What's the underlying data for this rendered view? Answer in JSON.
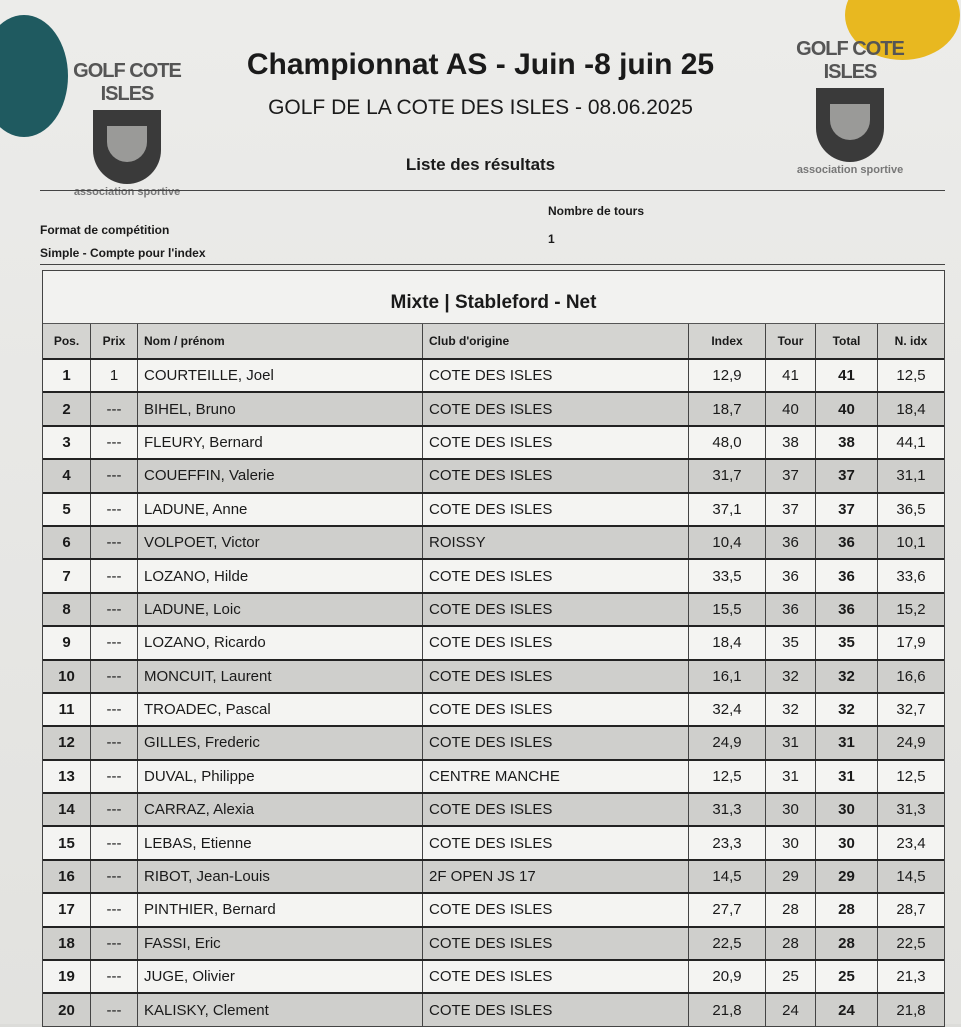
{
  "header": {
    "title": "Championnat AS - Juin  -8 juin 25",
    "subtitle": "GOLF DE LA COTE DES ISLES - 08.06.2025",
    "list_title": "Liste des résultats",
    "logo_text": "GOLF COTE ISLES",
    "logo_subtext": "association sportive"
  },
  "info": {
    "format_label": "Format de compétition",
    "format_value": "Simple - Compte pour l'index",
    "rounds_label": "Nombre de tours",
    "rounds_value": "1"
  },
  "colors": {
    "magnet_left": "#1f5a60",
    "magnet_right": "#e8b820"
  },
  "table": {
    "caption": "Mixte | Stableford - Net",
    "columns": [
      "Pos.",
      "Prix",
      "Nom / prénom",
      "Club d'origine",
      "Index",
      "Tour",
      "Total",
      "N. idx"
    ],
    "rows": [
      [
        "1",
        "1",
        "COURTEILLE, Joel",
        "COTE DES ISLES",
        "12,9",
        "41",
        "41",
        "12,5"
      ],
      [
        "2",
        "---",
        "BIHEL, Bruno",
        "COTE DES ISLES",
        "18,7",
        "40",
        "40",
        "18,4"
      ],
      [
        "3",
        "---",
        "FLEURY, Bernard",
        "COTE DES ISLES",
        "48,0",
        "38",
        "38",
        "44,1"
      ],
      [
        "4",
        "---",
        "COUEFFIN, Valerie",
        "COTE DES ISLES",
        "31,7",
        "37",
        "37",
        "31,1"
      ],
      [
        "5",
        "---",
        "LADUNE, Anne",
        "COTE DES ISLES",
        "37,1",
        "37",
        "37",
        "36,5"
      ],
      [
        "6",
        "---",
        "VOLPOET, Victor",
        "ROISSY",
        "10,4",
        "36",
        "36",
        "10,1"
      ],
      [
        "7",
        "---",
        "LOZANO, Hilde",
        "COTE DES ISLES",
        "33,5",
        "36",
        "36",
        "33,6"
      ],
      [
        "8",
        "---",
        "LADUNE, Loic",
        "COTE DES ISLES",
        "15,5",
        "36",
        "36",
        "15,2"
      ],
      [
        "9",
        "---",
        "LOZANO, Ricardo",
        "COTE DES ISLES",
        "18,4",
        "35",
        "35",
        "17,9"
      ],
      [
        "10",
        "---",
        "MONCUIT, Laurent",
        "COTE DES ISLES",
        "16,1",
        "32",
        "32",
        "16,6"
      ],
      [
        "11",
        "---",
        "TROADEC, Pascal",
        "COTE DES ISLES",
        "32,4",
        "32",
        "32",
        "32,7"
      ],
      [
        "12",
        "---",
        "GILLES, Frederic",
        "COTE DES ISLES",
        "24,9",
        "31",
        "31",
        "24,9"
      ],
      [
        "13",
        "---",
        "DUVAL, Philippe",
        "CENTRE MANCHE",
        "12,5",
        "31",
        "31",
        "12,5"
      ],
      [
        "14",
        "---",
        "CARRAZ, Alexia",
        "COTE DES ISLES",
        "31,3",
        "30",
        "30",
        "31,3"
      ],
      [
        "15",
        "---",
        "LEBAS, Etienne",
        "COTE DES ISLES",
        "23,3",
        "30",
        "30",
        "23,4"
      ],
      [
        "16",
        "---",
        "RIBOT, Jean-Louis",
        "2F OPEN JS 17",
        "14,5",
        "29",
        "29",
        "14,5"
      ],
      [
        "17",
        "---",
        "PINTHIER, Bernard",
        "COTE DES ISLES",
        "27,7",
        "28",
        "28",
        "28,7"
      ],
      [
        "18",
        "---",
        "FASSI, Eric",
        "COTE DES ISLES",
        "22,5",
        "28",
        "28",
        "22,5"
      ],
      [
        "19",
        "---",
        "JUGE, Olivier",
        "COTE DES ISLES",
        "20,9",
        "25",
        "25",
        "21,3"
      ],
      [
        "20",
        "---",
        "KALISKY, Clement",
        "COTE DES ISLES",
        "21,8",
        "24",
        "24",
        "21,8"
      ]
    ]
  }
}
